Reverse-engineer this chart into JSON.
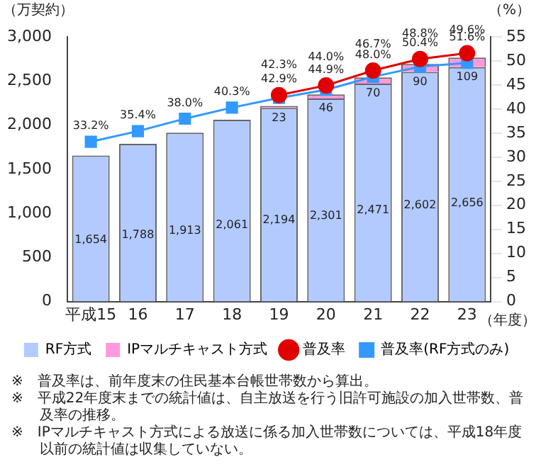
{
  "chart_data": {
    "type": "bar",
    "stacked": true,
    "ylabel": "（万契約）",
    "y2label": "（%）",
    "xlabel": "（年度）",
    "categories": [
      "平成15",
      "16",
      "17",
      "18",
      "19",
      "20",
      "21",
      "22",
      "23"
    ],
    "series": [
      {
        "name": "RF方式",
        "color": "#b3caff",
        "values": [
          1654,
          1788,
          1913,
          2061,
          2194,
          2301,
          2471,
          2602,
          2656
        ],
        "value_labels": [
          "1,654",
          "1,788",
          "1,913",
          "2,061",
          "2,194",
          "2,301",
          "2,471",
          "2,602",
          "2,656"
        ]
      },
      {
        "name": "IPマルチキャスト方式",
        "color": "#ff99dd",
        "values": [
          null,
          null,
          null,
          null,
          23,
          46,
          70,
          90,
          109
        ],
        "value_labels": [
          null,
          null,
          null,
          null,
          "23",
          "46",
          "70",
          "90",
          "109"
        ]
      },
      {
        "name": "普及率",
        "type": "line",
        "axis": "y2",
        "marker": "circle",
        "color": "#e00000",
        "values": [
          null,
          null,
          null,
          null,
          42.9,
          44.9,
          48.0,
          50.4,
          51.6
        ],
        "value_labels": [
          null,
          null,
          null,
          null,
          "42.9%",
          "44.9%",
          "48.0%",
          "50.4%",
          "51.6%"
        ]
      },
      {
        "name": "普及率(RF方式のみ)",
        "type": "line",
        "axis": "y2",
        "marker": "square",
        "color": "#3399ff",
        "values": [
          33.2,
          35.4,
          38.0,
          40.3,
          42.3,
          44.0,
          46.7,
          48.8,
          49.6
        ],
        "value_labels": [
          "33.2%",
          "35.4%",
          "38.0%",
          "40.3%",
          "42.3%",
          "44.0%",
          "46.7%",
          "48.8%",
          "49.6%"
        ]
      }
    ],
    "ylim": [
      0,
      3000
    ],
    "yticks": [
      0,
      500,
      {
        "value": 1000,
        "label": "1,000"
      },
      {
        "value": 1500,
        "label": "1,500"
      },
      {
        "value": 2000,
        "label": "2,000"
      },
      {
        "value": 2500,
        "label": "2,500"
      },
      {
        "value": 3000,
        "label": "3,000"
      }
    ],
    "y2lim": [
      0,
      55
    ],
    "y2ticks": [
      0,
      5,
      10,
      15,
      20,
      25,
      30,
      35,
      40,
      45,
      50,
      55
    ],
    "grid": false,
    "legend": "bottom",
    "annotations": [
      "※　普及率は、前年度末の住民基本台帳世帯数から算出。",
      "※　平成22年度末までの統計値は、自主放送を行う旧許可施設の加入世帯数、普及率の推移。",
      "※　IPマルチキャスト方式による放送に係る加入世帯数については、平成18年度以前の統計値は収集していない。"
    ]
  }
}
